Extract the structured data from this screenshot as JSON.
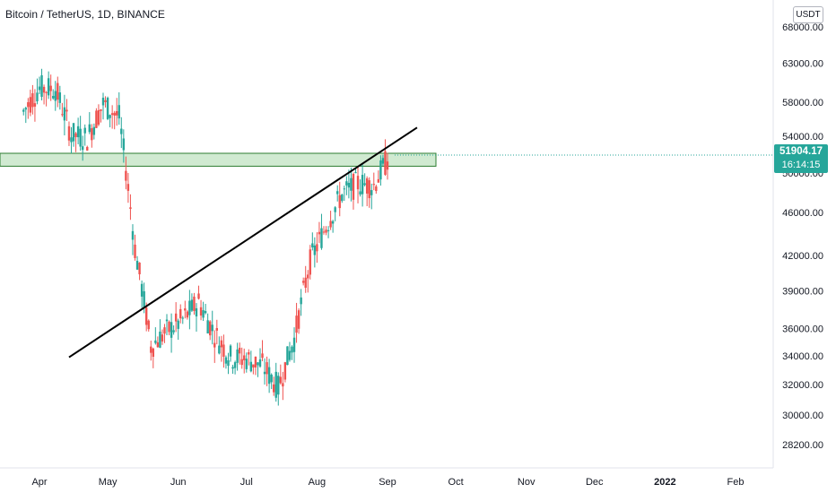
{
  "header": {
    "title": "Bitcoin / TetherUS, 1D, BINANCE"
  },
  "currency": "USDT",
  "last_price": {
    "price": "51904.17",
    "countdown": "16:14:15"
  },
  "colors": {
    "up": "#26a69a",
    "down": "#ef5350",
    "zone_fill": "#c8e6c9",
    "zone_border": "#2e7d32",
    "trendline": "#000000",
    "price_line": "#26a69a"
  },
  "chart_data": {
    "type": "candlestick",
    "exchange": "BINANCE",
    "symbol": "Bitcoin / TetherUS",
    "interval": "1D",
    "price_scale": "log",
    "y_tick_labels": [
      "68000.00",
      "63000.00",
      "58000.00",
      "54000.00",
      "50000.00",
      "46000.00",
      "42000.00",
      "39000.00",
      "36000.00",
      "34000.00",
      "32000.00",
      "30000.00",
      "28200.00"
    ],
    "x_tick_labels": [
      "Apr",
      "May",
      "Jun",
      "Jul",
      "Aug",
      "Sep",
      "Oct",
      "Nov",
      "Dec",
      "2022",
      "Feb"
    ],
    "last_price": 51904.17,
    "candles": [
      {
        "date": "2021-03-25",
        "open": 58400,
        "close": 56900
      },
      {
        "date": "2021-04-01",
        "open": 56900,
        "close": 59800
      },
      {
        "date": "2021-04-08",
        "open": 59800,
        "close": 59700
      },
      {
        "date": "2021-04-15",
        "open": 59700,
        "close": 54200
      },
      {
        "date": "2021-04-22",
        "open": 54200,
        "close": 53800
      },
      {
        "date": "2021-04-29",
        "open": 53800,
        "close": 57800
      },
      {
        "date": "2021-05-06",
        "open": 57800,
        "close": 56200
      },
      {
        "date": "2021-05-13",
        "open": 56200,
        "close": 42600
      },
      {
        "date": "2021-05-20",
        "open": 42600,
        "close": 34700
      },
      {
        "date": "2021-05-27",
        "open": 34700,
        "close": 35800
      },
      {
        "date": "2021-06-03",
        "open": 35800,
        "close": 36700
      },
      {
        "date": "2021-06-10",
        "open": 36700,
        "close": 38100
      },
      {
        "date": "2021-06-17",
        "open": 38100,
        "close": 35600
      },
      {
        "date": "2021-06-24",
        "open": 35600,
        "close": 33900
      },
      {
        "date": "2021-07-01",
        "open": 33900,
        "close": 33800
      },
      {
        "date": "2021-07-08",
        "open": 33800,
        "close": 33300
      },
      {
        "date": "2021-07-15",
        "open": 33300,
        "close": 31800
      },
      {
        "date": "2021-07-22",
        "open": 31800,
        "close": 35200
      },
      {
        "date": "2021-07-29",
        "open": 35200,
        "close": 41500
      },
      {
        "date": "2021-08-05",
        "open": 41500,
        "close": 44700
      },
      {
        "date": "2021-08-12",
        "open": 44700,
        "close": 47800
      },
      {
        "date": "2021-08-19",
        "open": 47800,
        "close": 48900
      },
      {
        "date": "2021-08-26",
        "open": 48900,
        "close": 48700
      },
      {
        "date": "2021-09-02",
        "open": 48700,
        "close": 51900
      }
    ],
    "horizontal_zone": {
      "low": 50700,
      "high": 52100
    },
    "trendline": {
      "from": {
        "date": "2021-04-14",
        "price": 33900
      },
      "to": {
        "date": "2021-09-14",
        "price": 55000
      }
    }
  }
}
